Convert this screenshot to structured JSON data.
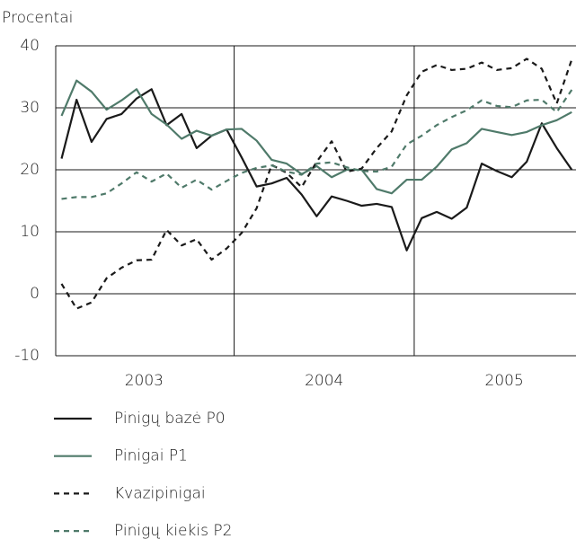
{
  "chart_data": {
    "type": "line",
    "y_axis_label": "Procentai",
    "categories": [
      null,
      null,
      null,
      null,
      null,
      null,
      null,
      null,
      null,
      null,
      null,
      null,
      null,
      null,
      null,
      null,
      null,
      null,
      null,
      null,
      null,
      null,
      null,
      null,
      null,
      null,
      null,
      null,
      null,
      null,
      null,
      null,
      null,
      null,
      null
    ],
    "year_labels": [
      "2003",
      "2004",
      "2005"
    ],
    "ylim": [
      -10,
      40
    ],
    "yticks": [
      -10,
      0,
      10,
      20,
      30,
      40
    ],
    "grid": true,
    "series": [
      {
        "name": "Pinigų bazė P0",
        "color": "#1a1a1a",
        "dash": false,
        "values": [
          21.8,
          31.3,
          24.5,
          28.2,
          29,
          31.5,
          33,
          27.2,
          29,
          23.5,
          25.5,
          26.5,
          22,
          17.3,
          17.8,
          18.7,
          16,
          12.5,
          15.7,
          15,
          14.2,
          14.5,
          14,
          7,
          12.2,
          13.2,
          12.1,
          13.9,
          21,
          19.8,
          18.8,
          21.3,
          27.5,
          23.5,
          20
        ]
      },
      {
        "name": "Pinigai P1",
        "color": "#4f7a6a",
        "dash": false,
        "values": [
          28.7,
          34.4,
          32.6,
          29.7,
          31.2,
          33,
          29,
          27.3,
          25,
          26.3,
          25.5,
          26.5,
          26.6,
          24.7,
          21.6,
          21,
          19.3,
          20.6,
          18.8,
          20,
          20,
          16.9,
          16.2,
          18.4,
          18.4,
          20.5,
          23.3,
          24.3,
          26.6,
          26.1,
          25.6,
          26.1,
          27.2,
          28,
          29.3
        ]
      },
      {
        "name": "Kvazipinigai",
        "color": "#1a1a1a",
        "dash": true,
        "values": [
          1.6,
          -2.4,
          -1.4,
          2.5,
          4.2,
          5.4,
          5.5,
          10.3,
          7.8,
          8.8,
          5.5,
          7.3,
          9.8,
          13.8,
          20.8,
          19.5,
          17.2,
          21.3,
          24.6,
          19.7,
          20.2,
          23.5,
          26.2,
          32,
          35.8,
          36.9,
          36.1,
          36.3,
          37.3,
          36.1,
          36.4,
          37.9,
          36.3,
          30.7,
          37.8
        ]
      },
      {
        "name": "Pinigų kiekis P2",
        "color": "#4f7a6a",
        "dash": true,
        "values": [
          15.3,
          15.6,
          15.6,
          16.2,
          17.8,
          19.6,
          18.1,
          19.4,
          17.1,
          18.4,
          16.8,
          18.2,
          19.5,
          20.3,
          20.7,
          19.7,
          19.2,
          21,
          21.2,
          20.4,
          19.8,
          19.7,
          20.5,
          24.1,
          25.5,
          27.2,
          28.5,
          29.6,
          31.2,
          30.3,
          30.1,
          31.2,
          31.3,
          29.3,
          32.9
        ]
      }
    ]
  }
}
